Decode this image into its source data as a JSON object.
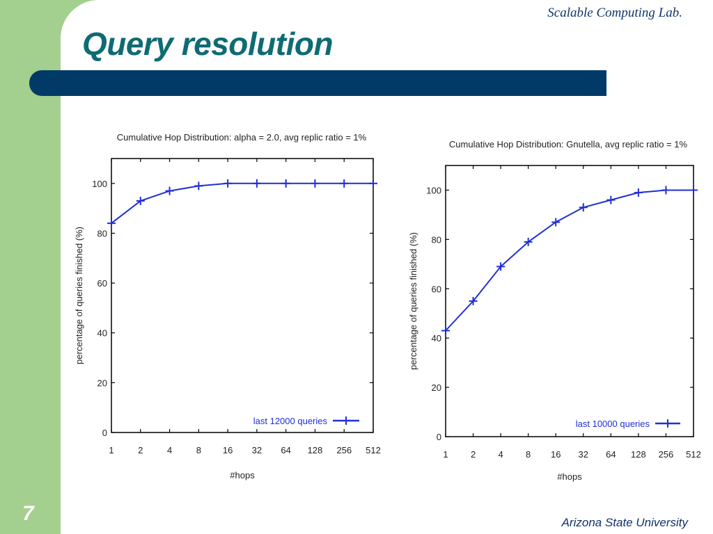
{
  "slide": {
    "title": "Query resolution",
    "lab": "Scalable Computing Lab.",
    "university": "Arizona State University",
    "page_number": "7",
    "colors": {
      "sidebar": "#a3cf8f",
      "header_bar": "#013a66",
      "title": "#0f6b73",
      "series": "#1f2fd6"
    }
  },
  "chart_data": [
    {
      "type": "line",
      "title": "Cumulative Hop Distribution: alpha = 2.0, avg replic ratio = 1%",
      "xlabel": "#hops",
      "ylabel": "percentage of queries finished (%)",
      "x_scale": "log2",
      "x_ticks": [
        "1",
        "2",
        "4",
        "8",
        "16",
        "32",
        "64",
        "128",
        "256",
        "512"
      ],
      "ylim": [
        0,
        110
      ],
      "y_ticks": [
        "0",
        "20",
        "40",
        "60",
        "80",
        "100"
      ],
      "legend": "bottom-right",
      "series": [
        {
          "name": "last 12000 queries",
          "marker": "+",
          "x": [
            1,
            2,
            4,
            8,
            16,
            32,
            64,
            128,
            256,
            512
          ],
          "y": [
            84,
            93,
            97,
            99,
            100,
            100,
            100,
            100,
            100,
            100
          ]
        }
      ]
    },
    {
      "type": "line",
      "title": "Cumulative Hop Distribution: Gnutella, avg replic ratio = 1%",
      "xlabel": "#hops",
      "ylabel": "percentage of queries finished (%)",
      "x_scale": "log2",
      "x_ticks": [
        "1",
        "2",
        "4",
        "8",
        "16",
        "32",
        "64",
        "128",
        "256",
        "512"
      ],
      "ylim": [
        0,
        110
      ],
      "y_ticks": [
        "0",
        "20",
        "40",
        "60",
        "80",
        "100"
      ],
      "legend": "bottom-right",
      "series": [
        {
          "name": "last 10000 queries",
          "marker": "+",
          "x": [
            1,
            2,
            4,
            8,
            16,
            32,
            64,
            128,
            256,
            512
          ],
          "y": [
            43,
            55,
            69,
            79,
            87,
            93,
            96,
            99,
            100,
            100
          ]
        }
      ]
    }
  ]
}
